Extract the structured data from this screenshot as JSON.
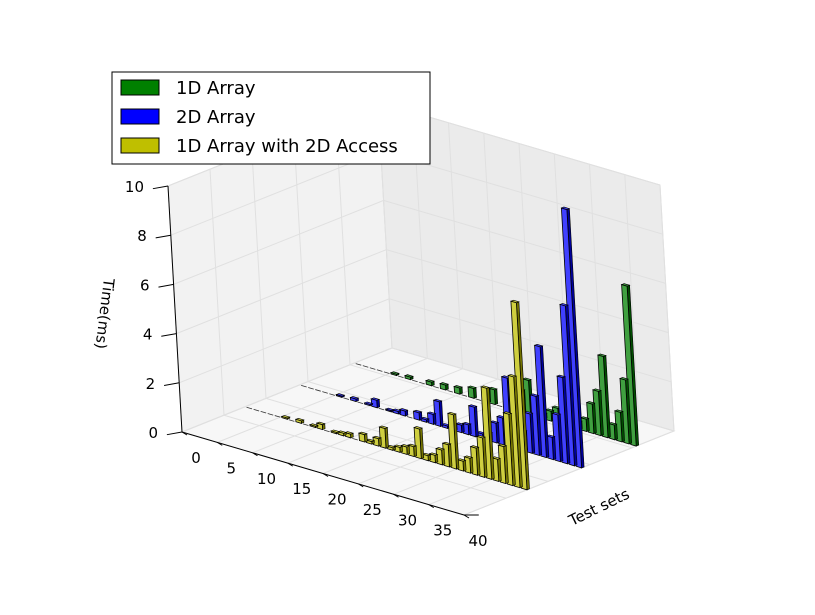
{
  "chart_data": {
    "type": "bar",
    "projection": "3d",
    "title": "",
    "xlabel": "Test sets",
    "ylabel": "",
    "zlabel": "Time(ms)",
    "xlim": [
      0,
      40
    ],
    "zlim": [
      0,
      10
    ],
    "x_ticks": [
      "0",
      "5",
      "10",
      "15",
      "20",
      "25",
      "30",
      "35",
      "40"
    ],
    "z_ticks": [
      "0",
      "2",
      "4",
      "6",
      "8",
      "10"
    ],
    "grid": true,
    "legend_position": "top-left",
    "x": [
      1,
      2,
      3,
      4,
      5,
      6,
      7,
      8,
      9,
      10,
      11,
      12,
      13,
      14,
      15,
      16,
      17,
      18,
      19,
      20,
      21,
      22,
      23,
      24,
      25,
      26,
      27,
      28,
      29,
      30,
      31,
      32,
      33,
      34,
      35,
      36,
      37,
      38,
      39,
      40
    ],
    "series": [
      {
        "name": "1D Array",
        "color": "#008000",
        "values": [
          0,
          0,
          0,
          0,
          0,
          0.05,
          0,
          0.1,
          0,
          0,
          0.15,
          0,
          0.2,
          0,
          0.25,
          0,
          0.4,
          0,
          0.5,
          0.6,
          0,
          0.8,
          0,
          0.9,
          1.4,
          0.1,
          0.2,
          0.4,
          0.6,
          0.7,
          2.4,
          0.3,
          0.5,
          1.2,
          1.8,
          3.3,
          0.6,
          1.2,
          2.6,
          6.5
        ]
      },
      {
        "name": "2D Array",
        "color": "#0000ff",
        "values": [
          0,
          0,
          0,
          0,
          0,
          0.05,
          0,
          0.1,
          0,
          0.05,
          0.3,
          0,
          0.05,
          0.1,
          0.2,
          0,
          0.3,
          0.1,
          0.4,
          1,
          0.1,
          0.2,
          0.3,
          0.4,
          1.2,
          0.2,
          0.3,
          0.8,
          1.1,
          2.8,
          0.4,
          0.8,
          1.6,
          2.4,
          4.5,
          0.9,
          1.9,
          3.5,
          6.5,
          10.5
        ]
      },
      {
        "name": "1D Array with 2D Access",
        "color": "#bfbf00",
        "values": [
          0,
          0,
          0,
          0,
          0,
          0.05,
          0,
          0.1,
          0,
          0.05,
          0.2,
          0,
          0.05,
          0.1,
          0.15,
          0,
          0.3,
          0.1,
          0.3,
          0.8,
          0.1,
          0.2,
          0.3,
          0.4,
          1.2,
          0.2,
          0.3,
          0.6,
          0.9,
          2.2,
          0.4,
          0.6,
          1.1,
          1.6,
          3.7,
          0.9,
          1.5,
          2.9,
          4.5,
          7.6
        ]
      }
    ]
  }
}
